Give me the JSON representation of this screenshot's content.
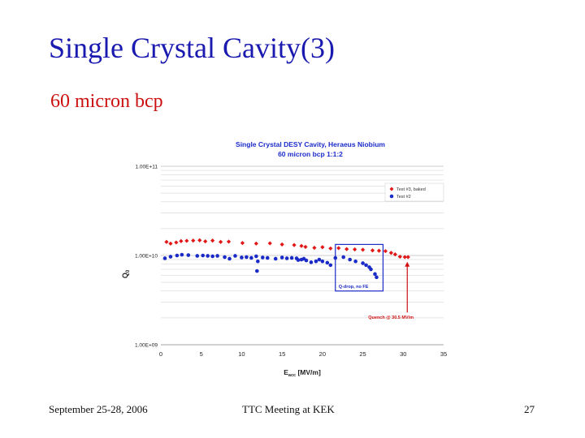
{
  "slide": {
    "title": "Single Crystal Cavity(3)",
    "subtitle": "60 micron bcp",
    "footer": {
      "left": "September 25-28, 2006",
      "center": "TTC Meeting at KEK",
      "right": "27"
    }
  },
  "colors": {
    "title": "#1a1ab0",
    "subtitle": "#cc1010",
    "series1": "#e01818",
    "series2": "#1a2bc8",
    "annotation": "#d01010",
    "box": "#1a2bc8"
  },
  "chart_data": {
    "type": "scatter",
    "title": "Single Crystal DESY Cavity, Heraeus Niobium",
    "subtitle": "60 micron bcp 1:1:2",
    "xlabel": "E_acc [MV/m]",
    "xlabel_main": "E",
    "xlabel_sub": "acc",
    "xlabel_unit": " [MV/m]",
    "ylabel": "Q0",
    "ylabel_main": "Q",
    "ylabel_sub": "0",
    "xlim": [
      0,
      35
    ],
    "ylim": [
      1000000000.0,
      100000000000.0
    ],
    "yscale": "log",
    "xticks": [
      0,
      5,
      10,
      15,
      20,
      25,
      30,
      35
    ],
    "yticks": [
      {
        "value": 1000000000.0,
        "label": "1.00E+09"
      },
      {
        "value": 10000000000.0,
        "label": "1.00E+10"
      },
      {
        "value": 100000000000.0,
        "label": "1.00E+11"
      }
    ],
    "legend": {
      "position": "top-right"
    },
    "series": [
      {
        "name": "Test #3, baked",
        "marker": "diamond",
        "points": [
          [
            0.7,
            14200000000.0
          ],
          [
            1.2,
            13600000000.0
          ],
          [
            1.9,
            14000000000.0
          ],
          [
            2.5,
            14500000000.0
          ],
          [
            3.2,
            14600000000.0
          ],
          [
            4.0,
            14700000000.0
          ],
          [
            4.8,
            14800000000.0
          ],
          [
            5.5,
            14400000000.0
          ],
          [
            6.4,
            14700000000.0
          ],
          [
            7.4,
            14200000000.0
          ],
          [
            8.4,
            14300000000.0
          ],
          [
            10.1,
            13800000000.0
          ],
          [
            11.8,
            13600000000.0
          ],
          [
            13.5,
            13700000000.0
          ],
          [
            15.0,
            13300000000.0
          ],
          [
            16.5,
            13100000000.0
          ],
          [
            17.4,
            12800000000.0
          ],
          [
            17.9,
            12500000000.0
          ],
          [
            19.0,
            12200000000.0
          ],
          [
            20.0,
            12400000000.0
          ],
          [
            21.0,
            12000000000.0
          ],
          [
            22.0,
            12100000000.0
          ],
          [
            23.0,
            11800000000.0
          ],
          [
            24.0,
            11700000000.0
          ],
          [
            25.0,
            11600000000.0
          ],
          [
            26.2,
            11400000000.0
          ],
          [
            27.0,
            11300000000.0
          ],
          [
            27.8,
            11200000000.0
          ],
          [
            28.5,
            10700000000.0
          ],
          [
            29.0,
            10300000000.0
          ],
          [
            29.6,
            9700000000.0
          ],
          [
            30.2,
            9600000000.0
          ],
          [
            30.6,
            9600000000.0
          ]
        ]
      },
      {
        "name": "Test #2",
        "marker": "circle",
        "points": [
          [
            0.5,
            9300000000.0
          ],
          [
            1.2,
            9700000000.0
          ],
          [
            2.0,
            10000000000.0
          ],
          [
            2.6,
            10200000000.0
          ],
          [
            3.4,
            10100000000.0
          ],
          [
            4.5,
            9900000000.0
          ],
          [
            5.2,
            10000000000.0
          ],
          [
            5.8,
            9900000000.0
          ],
          [
            6.4,
            9800000000.0
          ],
          [
            7.0,
            9900000000.0
          ],
          [
            7.9,
            9600000000.0
          ],
          [
            8.5,
            9200000000.0
          ],
          [
            9.2,
            9900000000.0
          ],
          [
            10.0,
            9500000000.0
          ],
          [
            10.6,
            9600000000.0
          ],
          [
            11.2,
            9400000000.0
          ],
          [
            11.8,
            9800000000.0
          ],
          [
            12.0,
            8600000000.0
          ],
          [
            12.6,
            9500000000.0
          ],
          [
            13.2,
            9400000000.0
          ],
          [
            14.2,
            9200000000.0
          ],
          [
            11.9,
            6700000000.0
          ],
          [
            15.0,
            9500000000.0
          ],
          [
            15.6,
            9300000000.0
          ],
          [
            16.2,
            9400000000.0
          ],
          [
            16.8,
            9300000000.0
          ],
          [
            17.0,
            8900000000.0
          ],
          [
            17.4,
            9000000000.0
          ],
          [
            17.7,
            9200000000.0
          ],
          [
            18.0,
            8800000000.0
          ],
          [
            18.6,
            8400000000.0
          ],
          [
            19.2,
            8600000000.0
          ],
          [
            19.6,
            9000000000.0
          ],
          [
            20.0,
            8600000000.0
          ],
          [
            20.6,
            8300000000.0
          ],
          [
            21.0,
            7800000000.0
          ],
          [
            21.6,
            9400000000.0
          ],
          [
            22.6,
            9600000000.0
          ],
          [
            23.4,
            9000000000.0
          ],
          [
            24.1,
            8600000000.0
          ],
          [
            25.0,
            8200000000.0
          ],
          [
            25.4,
            7800000000.0
          ],
          [
            25.8,
            7400000000.0
          ],
          [
            26.0,
            7000000000.0
          ],
          [
            26.5,
            6200000000.0
          ],
          [
            26.7,
            5700000000.0
          ]
        ]
      }
    ],
    "annotations": {
      "box_label": "Q-drop, no FE",
      "box_range": {
        "x0": 21.6,
        "x1": 27.5,
        "y0": 4000000000.0,
        "y1": 13300000000.0
      },
      "quench_label": "Quench @ 30.5 MV/m",
      "quench_x": 30.5,
      "quench_arrow_tip_y": 8500000000.0,
      "quench_arrow_base_y": 2300000000.0
    }
  }
}
